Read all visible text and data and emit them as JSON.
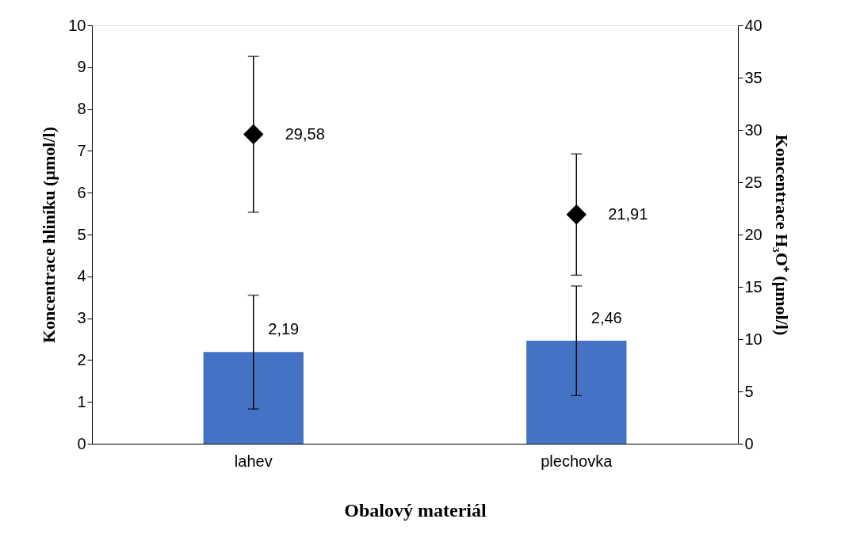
{
  "chart_data": {
    "type": "bar",
    "xlabel": "Obalový materiál",
    "ylabel": "Koncentrace hliníku (µmol/l)",
    "y2label": "Koncentrace H₃O⁺ (µmol/l)",
    "categories": [
      "lahev",
      "plechovka"
    ],
    "series": [
      {
        "color": "#4472c4",
        "values": [
          2.19,
          2.46
        ],
        "errors": [
          1.36,
          1.31
        ],
        "value_labels": [
          "2,19",
          "2,46"
        ]
      },
      {
        "type": "scatter",
        "axis": "y2",
        "color": "#000000",
        "marker": "diamond",
        "values": [
          29.58,
          21.91
        ],
        "errors": [
          7.45,
          5.8
        ],
        "value_labels": [
          "29,58",
          "21,91"
        ]
      }
    ],
    "ylim": [
      0,
      10
    ],
    "yticks": [
      0,
      1,
      2,
      3,
      4,
      5,
      6,
      7,
      8,
      9,
      10
    ],
    "y2lim": [
      0,
      40
    ],
    "y2ticks": [
      0,
      5,
      10,
      15,
      20,
      25,
      30,
      35,
      40
    ],
    "grid": false
  }
}
